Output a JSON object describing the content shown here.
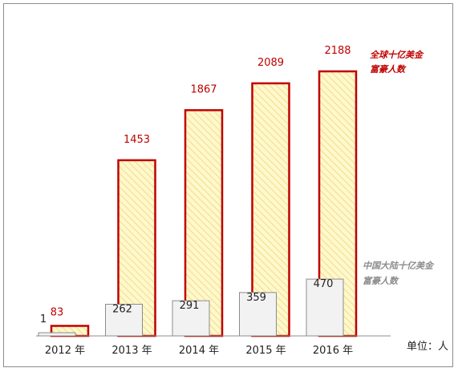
{
  "chart_data": {
    "type": "bar",
    "categories": [
      "2012 年",
      "2013 年",
      "2014 年",
      "2015 年",
      "2016 年"
    ],
    "series": [
      {
        "name": "中国大陆十亿美金富豪人数",
        "legend_lines": [
          "中国大陆十亿美金",
          "富豪人数"
        ],
        "values": [
          1,
          262,
          291,
          359,
          470
        ],
        "fill": "#f2f2f2",
        "stroke": "#8c8c8c"
      },
      {
        "name": "全球十亿美金富豪人数",
        "legend_lines": [
          "全球十亿美金",
          "富豪人数"
        ],
        "values": [
          83,
          1453,
          1867,
          2089,
          2188
        ],
        "fill": "#fff8cc",
        "stroke": "#c00000"
      }
    ],
    "unit_label": "单位：人",
    "ylim": [
      0,
      2188
    ],
    "grid": false,
    "legend_position": "right"
  },
  "colors": {
    "accent_red": "#c00000",
    "hatch_yellow": "#f5e27a",
    "gray_bar": "#f2f2f2",
    "gray_stroke": "#8c8c8c"
  }
}
